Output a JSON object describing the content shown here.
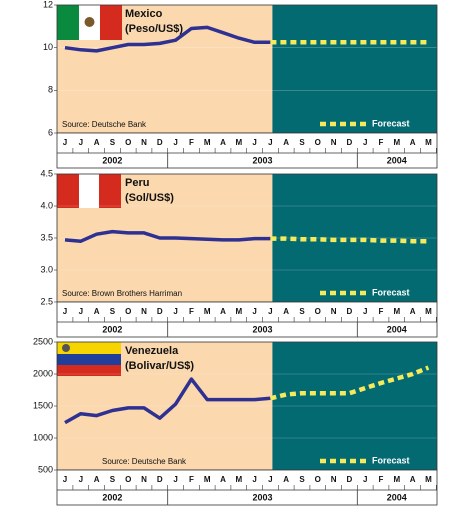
{
  "chart_data": [
    {
      "type": "line",
      "title": "Mexico",
      "subtitle": "(Peso/US$)",
      "source": "Source: Deutsche Bank",
      "categories": [
        "J",
        "J",
        "A",
        "S",
        "O",
        "N",
        "D",
        "J",
        "F",
        "M",
        "A",
        "M",
        "J",
        "J",
        "A",
        "S",
        "O",
        "N",
        "D",
        "J",
        "F",
        "M",
        "A",
        "M"
      ],
      "years": [
        "2002",
        "2003",
        "2004"
      ],
      "ylim": [
        6,
        12
      ],
      "yticks": [
        6,
        8,
        10,
        12
      ],
      "series": [
        {
          "color": "#2e3192",
          "values": [
            10.0,
            9.9,
            9.85,
            10.0,
            10.15,
            10.15,
            10.2,
            10.35,
            10.9,
            10.95,
            10.7,
            10.45,
            10.25,
            10.25,
            null,
            null,
            null,
            null,
            null,
            null,
            null,
            null,
            null,
            null
          ]
        },
        {
          "name": "Forecast",
          "color": "#f4ea5c",
          "values": [
            null,
            null,
            null,
            null,
            null,
            null,
            null,
            null,
            null,
            null,
            null,
            null,
            null,
            10.25,
            10.25,
            10.25,
            10.25,
            10.25,
            10.25,
            10.25,
            10.25,
            10.25,
            10.25,
            10.25
          ]
        }
      ]
    },
    {
      "type": "line",
      "title": "Peru",
      "subtitle": "(Sol/US$)",
      "source": "Source: Brown Brothers Harriman",
      "categories": [
        "J",
        "J",
        "A",
        "S",
        "O",
        "N",
        "D",
        "J",
        "F",
        "M",
        "A",
        "M",
        "J",
        "J",
        "A",
        "S",
        "O",
        "N",
        "D",
        "J",
        "F",
        "M",
        "A",
        "M"
      ],
      "years": [
        "2002",
        "2003",
        "2004"
      ],
      "ylim": [
        2.5,
        4.5
      ],
      "yticks": [
        2.5,
        {
          "value": 3,
          "label": "3.0"
        },
        3.5,
        {
          "value": 4,
          "label": "4.0"
        },
        4.5
      ],
      "series": [
        {
          "color": "#2e3192",
          "values": [
            3.47,
            3.45,
            3.56,
            3.6,
            3.58,
            3.58,
            3.5,
            3.5,
            3.49,
            3.48,
            3.47,
            3.47,
            3.49,
            3.49,
            null,
            null,
            null,
            null,
            null,
            null,
            null,
            null,
            null,
            null
          ]
        },
        {
          "name": "Forecast",
          "color": "#f4ea5c",
          "values": [
            null,
            null,
            null,
            null,
            null,
            null,
            null,
            null,
            null,
            null,
            null,
            null,
            null,
            3.49,
            3.49,
            3.48,
            3.48,
            3.47,
            3.47,
            3.47,
            3.46,
            3.46,
            3.45,
            3.45
          ]
        }
      ]
    },
    {
      "type": "line",
      "title": "Venezuela",
      "subtitle": "(Bolivar/US$)",
      "source": "Source: Deutsche Bank",
      "categories": [
        "J",
        "J",
        "A",
        "S",
        "O",
        "N",
        "D",
        "J",
        "F",
        "M",
        "A",
        "M",
        "J",
        "J",
        "A",
        "S",
        "O",
        "N",
        "D",
        "J",
        "F",
        "M",
        "A",
        "M"
      ],
      "years": [
        "2002",
        "2003",
        "2004"
      ],
      "ylim": [
        500,
        2500
      ],
      "yticks": [
        500,
        1000,
        1500,
        2000,
        2500
      ],
      "series": [
        {
          "color": "#2e3192",
          "values": [
            1240,
            1380,
            1350,
            1430,
            1470,
            1470,
            1310,
            1530,
            1920,
            1600,
            1600,
            1600,
            1600,
            1620,
            null,
            null,
            null,
            null,
            null,
            null,
            null,
            null,
            null,
            null
          ]
        },
        {
          "name": "Forecast",
          "color": "#f4ea5c",
          "values": [
            null,
            null,
            null,
            null,
            null,
            null,
            null,
            null,
            null,
            null,
            null,
            null,
            null,
            1620,
            1680,
            1700,
            1700,
            1700,
            1700,
            1780,
            1860,
            1930,
            2000,
            2100
          ]
        }
      ]
    }
  ]
}
